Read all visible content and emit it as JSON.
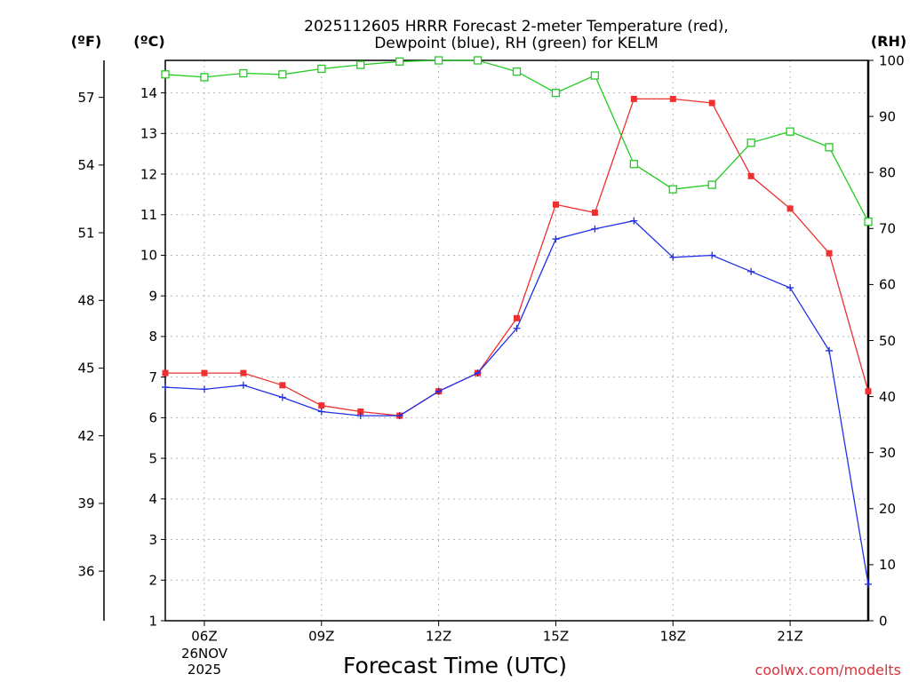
{
  "chart_data": {
    "type": "line",
    "title_lines": [
      "2025112605 HRRR Forecast 2-meter Temperature (red),",
      "Dewpoint (blue), RH (green) for KELM"
    ],
    "xlabel": "Forecast Time (UTC)",
    "x_hours": [
      5,
      6,
      7,
      8,
      9,
      10,
      11,
      12,
      13,
      14,
      15,
      16,
      17,
      18,
      19,
      20,
      21,
      22,
      23
    ],
    "xlim": [
      5,
      23
    ],
    "x_ticks": [
      {
        "hour": 6,
        "label": "06Z"
      },
      {
        "hour": 9,
        "label": "09Z"
      },
      {
        "hour": 12,
        "label": "12Z"
      },
      {
        "hour": 15,
        "label": "15Z"
      },
      {
        "hour": 18,
        "label": "18Z"
      },
      {
        "hour": 21,
        "label": "21Z"
      }
    ],
    "date_label": [
      "26NOV",
      "2025"
    ],
    "left_c_axis": {
      "unit": "(ºC)",
      "ylim": [
        1,
        14.8
      ],
      "ticks": [
        1,
        2,
        3,
        4,
        5,
        6,
        7,
        8,
        9,
        10,
        11,
        12,
        13,
        14
      ]
    },
    "left_f_axis": {
      "unit": "(ºF)",
      "ticks": [
        36,
        39,
        42,
        45,
        48,
        51,
        54,
        57
      ]
    },
    "right_rh_axis": {
      "unit": "(RH)",
      "ylim": [
        0,
        100
      ],
      "ticks": [
        0,
        10,
        20,
        30,
        40,
        50,
        60,
        70,
        80,
        90,
        100
      ]
    },
    "series": [
      {
        "name": "Temperature",
        "axis": "C",
        "color": "#ef3030",
        "marker": "filled-square",
        "values": [
          7.1,
          7.1,
          7.1,
          6.8,
          6.3,
          6.15,
          6.05,
          6.65,
          7.1,
          8.45,
          11.25,
          11.05,
          13.85,
          13.85,
          13.75,
          11.95,
          11.15,
          10.05,
          6.65
        ]
      },
      {
        "name": "Dewpoint",
        "axis": "C",
        "color": "#2030e8",
        "marker": "plus",
        "values": [
          6.75,
          6.7,
          6.8,
          6.5,
          6.15,
          6.05,
          6.05,
          6.65,
          7.1,
          8.2,
          10.4,
          10.65,
          10.85,
          9.95,
          10.0,
          9.6,
          9.2,
          7.65,
          1.9
        ]
      },
      {
        "name": "RH",
        "axis": "RH",
        "color": "#22cc22",
        "marker": "open-square",
        "values": [
          97.5,
          97.0,
          97.7,
          97.5,
          98.5,
          99.2,
          99.8,
          100,
          100,
          98.0,
          94.2,
          97.3,
          81.5,
          77.0,
          77.8,
          85.3,
          87.3,
          84.5,
          71.2
        ]
      }
    ]
  },
  "credit": "coolwx.com/modelts"
}
